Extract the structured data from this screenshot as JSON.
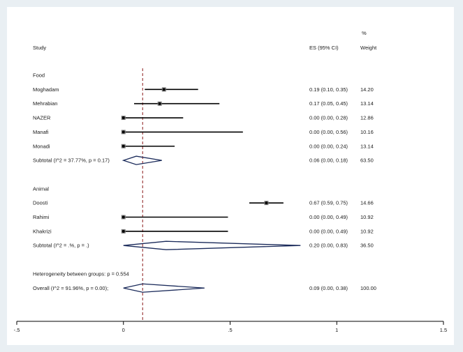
{
  "chart_data": {
    "type": "forest",
    "header": {
      "study": "Study",
      "es": "ES (95% CI)",
      "weight_pct": "%",
      "weight": "Weight"
    },
    "overall_line": 0.09,
    "xlim": [
      -0.5,
      1.5
    ],
    "xticks": [
      {
        "value": -0.5,
        "label": "-.5"
      },
      {
        "value": 0,
        "label": "0"
      },
      {
        "value": 0.5,
        "label": ".5"
      },
      {
        "value": 1,
        "label": "1"
      },
      {
        "value": 1.5,
        "label": "1.5"
      }
    ],
    "rows": [
      {
        "kind": "group",
        "label": "Food"
      },
      {
        "kind": "study",
        "label": "Moghadam",
        "es": 0.19,
        "lo": 0.1,
        "hi": 0.35,
        "es_text": "0.19 (0.10, 0.35)",
        "weight": "14.20"
      },
      {
        "kind": "study",
        "label": "Mehrabian",
        "es": 0.17,
        "lo": 0.05,
        "hi": 0.45,
        "es_text": "0.17 (0.05, 0.45)",
        "weight": "13.14"
      },
      {
        "kind": "study",
        "label": "NAZER",
        "es": 0.0,
        "lo": 0.0,
        "hi": 0.28,
        "es_text": "0.00 (0.00, 0.28)",
        "weight": "12.86"
      },
      {
        "kind": "study",
        "label": "Manafi",
        "es": 0.0,
        "lo": 0.0,
        "hi": 0.56,
        "es_text": "0.00 (0.00, 0.56)",
        "weight": "10.16"
      },
      {
        "kind": "study",
        "label": "Monadi",
        "es": 0.0,
        "lo": 0.0,
        "hi": 0.24,
        "es_text": "0.00 (0.00, 0.24)",
        "weight": "13.14"
      },
      {
        "kind": "subtotal",
        "label": "Subtotal  (I^2 = 37.77%, p = 0.17)",
        "es": 0.06,
        "lo": 0.0,
        "hi": 0.18,
        "es_text": "0.06 (0.00, 0.18)",
        "weight": "63.50"
      },
      {
        "kind": "blank"
      },
      {
        "kind": "group",
        "label": "Animal"
      },
      {
        "kind": "study",
        "label": "Doosti",
        "es": 0.67,
        "lo": 0.59,
        "hi": 0.75,
        "es_text": "0.67 (0.59, 0.75)",
        "weight": "14.66"
      },
      {
        "kind": "study",
        "label": "Rahimi",
        "es": 0.0,
        "lo": 0.0,
        "hi": 0.49,
        "es_text": "0.00 (0.00, 0.49)",
        "weight": "10.92"
      },
      {
        "kind": "study",
        "label": "Khakrizi",
        "es": 0.0,
        "lo": 0.0,
        "hi": 0.49,
        "es_text": "0.00 (0.00, 0.49)",
        "weight": "10.92"
      },
      {
        "kind": "subtotal",
        "label": "Subtotal  (I^2 = .%, p = .)",
        "es": 0.2,
        "lo": 0.0,
        "hi": 0.83,
        "es_text": "0.20 (0.00, 0.83)",
        "weight": "36.50"
      },
      {
        "kind": "blank"
      },
      {
        "kind": "group",
        "label": "Heterogeneity between groups: p = 0.554"
      },
      {
        "kind": "subtotal",
        "label": "Overall  (I^2 = 91.96%, p = 0.00);",
        "es": 0.09,
        "lo": 0.0,
        "hi": 0.38,
        "es_text": "0.09 (0.00, 0.38)",
        "weight": "100.00"
      }
    ],
    "colors": {
      "marker": "#000000",
      "ci": "#000000",
      "diamond": "#1a2a5a",
      "ref_line": "#8b1a1a"
    }
  }
}
